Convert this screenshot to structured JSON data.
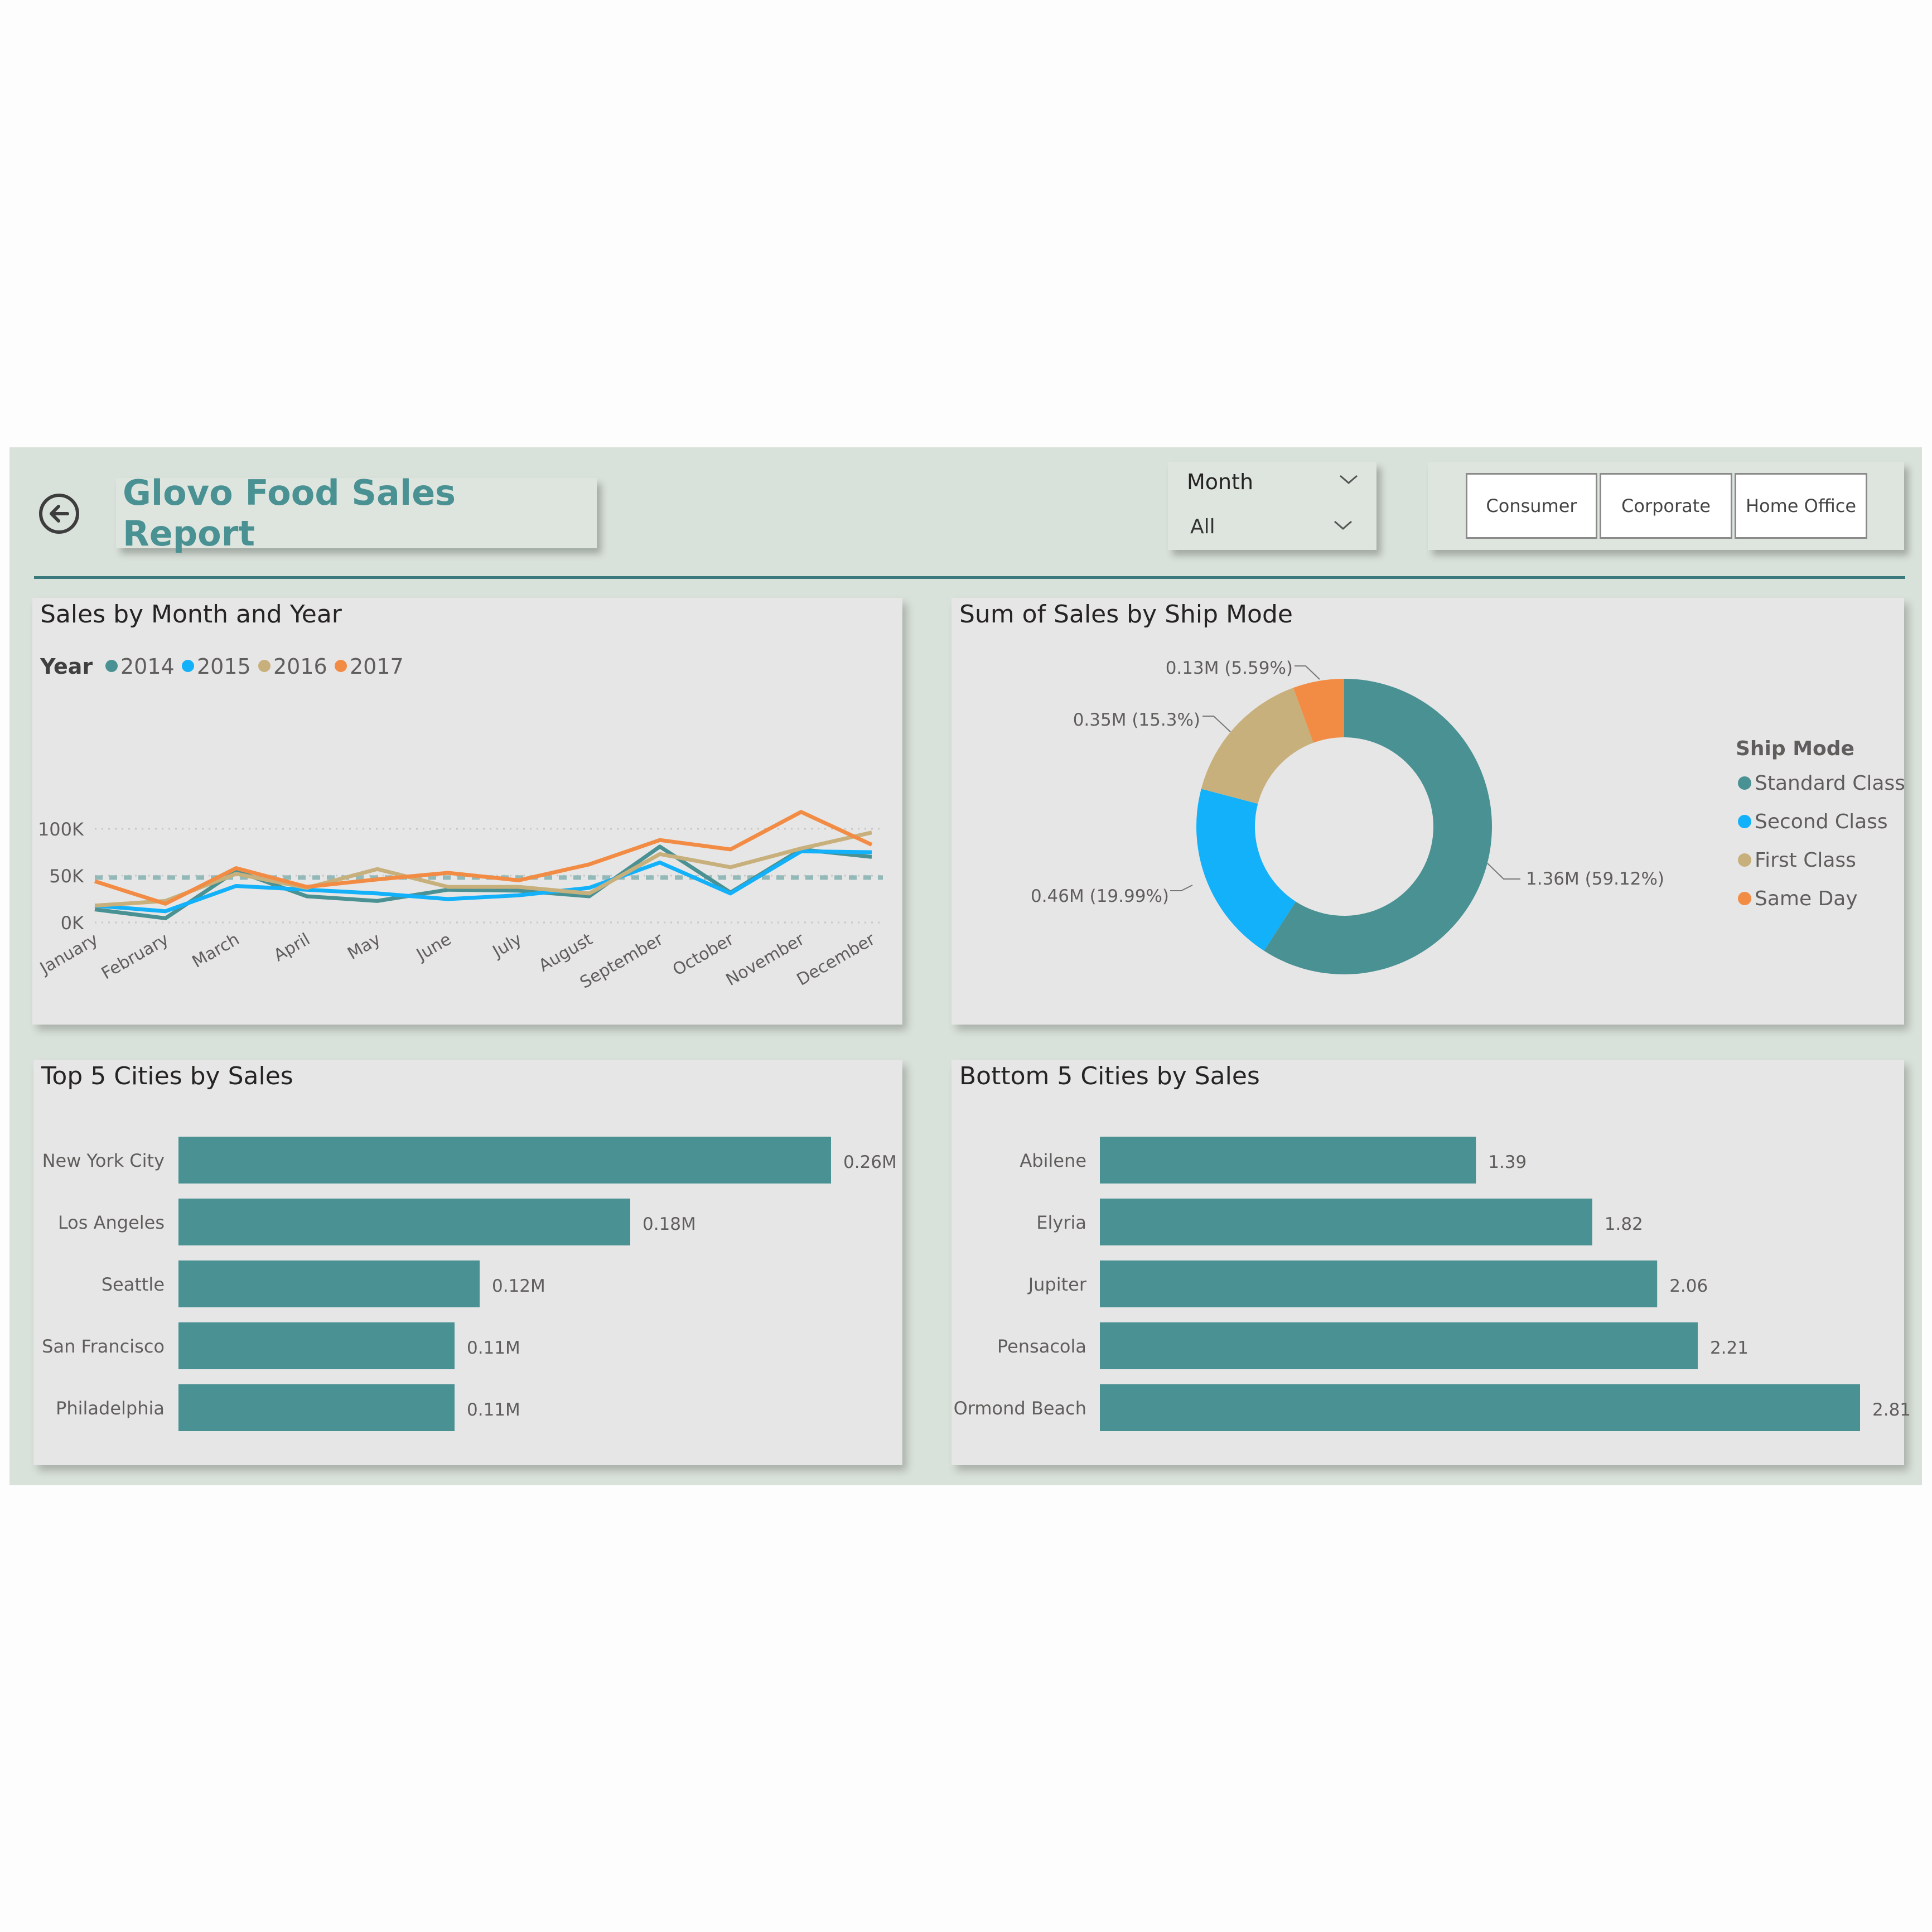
{
  "report": {
    "title": "Glovo Food Sales Report"
  },
  "filters": {
    "month": {
      "label": "Month",
      "selected": "All"
    },
    "segments": [
      "Consumer",
      "Corporate",
      "Home Office"
    ]
  },
  "colors": {
    "teal": "#4a9193",
    "blue": "#12b1f9",
    "tan": "#c8b07c",
    "orange": "#f28c45",
    "bar": "#4a9193"
  },
  "chart_data": [
    {
      "type": "line",
      "title": "Sales by Month and Year",
      "legend_title": "Year",
      "legend_position": "top-left",
      "x": [
        "January",
        "February",
        "March",
        "April",
        "May",
        "June",
        "July",
        "August",
        "September",
        "October",
        "November",
        "December"
      ],
      "y_ticks": [
        "0K",
        "50K",
        "100K"
      ],
      "ylim": [
        0,
        120000
      ],
      "reference_line": 48000,
      "grid": true,
      "series": [
        {
          "name": "2014",
          "color": "#4a9193",
          "values": [
            14000,
            4500,
            55000,
            28000,
            23000,
            35000,
            34000,
            28000,
            81000,
            32000,
            78000,
            70000
          ]
        },
        {
          "name": "2015",
          "color": "#12b1f9",
          "values": [
            18000,
            12000,
            39000,
            35000,
            31000,
            25000,
            29000,
            37000,
            64000,
            31000,
            76000,
            75000
          ]
        },
        {
          "name": "2016",
          "color": "#c8b07c",
          "values": [
            18000,
            23000,
            52000,
            37000,
            57000,
            38000,
            38000,
            31000,
            73000,
            59000,
            79000,
            96000
          ]
        },
        {
          "name": "2017",
          "color": "#f28c45",
          "values": [
            44000,
            20000,
            58000,
            38000,
            46000,
            53000,
            45000,
            62000,
            88000,
            78000,
            118000,
            83000
          ]
        }
      ]
    },
    {
      "type": "pie",
      "donut": true,
      "title": "Sum of Sales by Ship Mode",
      "legend_title": "Ship Mode",
      "legend_position": "right",
      "slices": [
        {
          "name": "Standard Class",
          "value": 1.36,
          "percent": 59.12,
          "label": "1.36M (59.12%)",
          "color": "#4a9193"
        },
        {
          "name": "Second Class",
          "value": 0.46,
          "percent": 19.99,
          "label": "0.46M (19.99%)",
          "color": "#12b1f9"
        },
        {
          "name": "First Class",
          "value": 0.35,
          "percent": 15.3,
          "label": "0.35M (15.3%)",
          "color": "#c8b07c"
        },
        {
          "name": "Same Day",
          "value": 0.13,
          "percent": 5.59,
          "label": "0.13M (5.59%)",
          "color": "#f28c45"
        }
      ]
    },
    {
      "type": "bar",
      "orientation": "horizontal",
      "title": "Top 5 Cities by Sales",
      "categories": [
        "New York City",
        "Los Angeles",
        "Seattle",
        "San Francisco",
        "Philadelphia"
      ],
      "values": [
        0.26,
        0.18,
        0.12,
        0.11,
        0.11
      ],
      "labels": [
        "0.26M",
        "0.18M",
        "0.12M",
        "0.11M",
        "0.11M"
      ]
    },
    {
      "type": "bar",
      "orientation": "horizontal",
      "title": "Bottom 5 Cities by Sales",
      "categories": [
        "Abilene",
        "Elyria",
        "Jupiter",
        "Pensacola",
        "Ormond Beach"
      ],
      "values": [
        1.39,
        1.82,
        2.06,
        2.21,
        2.81
      ],
      "labels": [
        "1.39",
        "1.82",
        "2.06",
        "2.21",
        "2.81"
      ]
    }
  ]
}
